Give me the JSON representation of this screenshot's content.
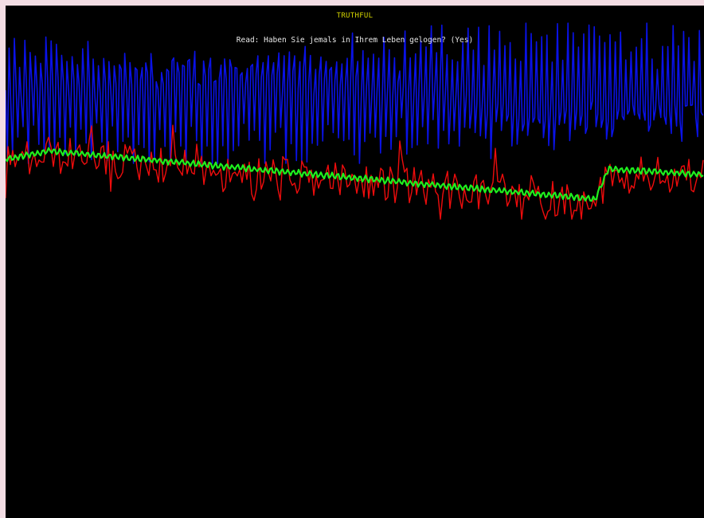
{
  "status": {
    "verdict": "TRUTHFUL",
    "verdict_color": "#d6d600"
  },
  "prompt": {
    "text": "Read: Haben Sie jemals in Ihrem Leben gelogen? (Yes)",
    "color": "#e8e8e8"
  },
  "traces": [
    {
      "name": "blue-trace",
      "color": "#0a12e6"
    },
    {
      "name": "red-trace",
      "color": "#ee0c0c"
    },
    {
      "name": "green-trace",
      "color": "#1ef01e"
    }
  ]
}
